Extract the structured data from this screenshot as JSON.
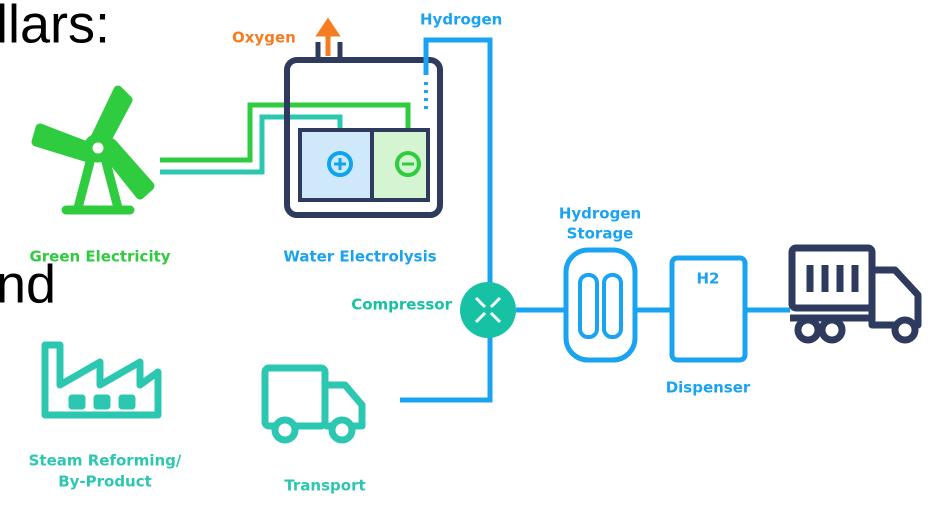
{
  "slide_fragments": [
    "llars:",
    "nd"
  ],
  "labels": {
    "oxygen": "Oxygen",
    "hydrogen": "Hydrogen",
    "green_electricity": "Green Electricity",
    "water_electrolysis": "Water Electrolysis",
    "compressor": "Compressor",
    "hydrogen_storage": [
      "Hydrogen",
      "Storage"
    ],
    "h2": "H2",
    "dispenser": "Dispenser",
    "steam_reforming": [
      "Steam Reforming/",
      "By-Product"
    ],
    "transport": "Transport"
  }
}
